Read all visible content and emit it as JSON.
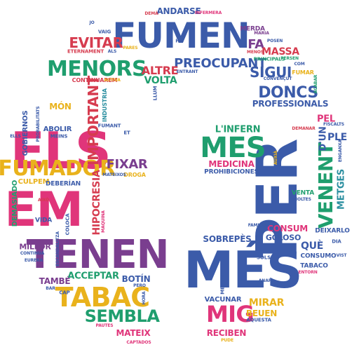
{
  "palette": {
    "pink": "#e0357a",
    "blue": "#3b5ba9",
    "green": "#1f9e6e",
    "yellow": "#e9b21c",
    "purple": "#7a3e8f",
    "red": "#d63c4f",
    "teal": "#2b8fa0",
    "orange": "#ef8a22"
  },
  "words": [
    {
      "text": "ELS",
      "color": "pink"
    },
    {
      "text": "PER",
      "color": "blue"
    },
    {
      "text": "EM",
      "color": "pink"
    },
    {
      "text": "TENEN",
      "color": "purple"
    },
    {
      "text": "MÉS",
      "color": "blue"
    },
    {
      "text": "FUMEN",
      "color": "blue"
    },
    {
      "text": "TABAC",
      "color": "yellow"
    },
    {
      "text": "FUMADOR",
      "color": "yellow"
    },
    {
      "text": "MENORS",
      "color": "green"
    },
    {
      "text": "MES",
      "color": "green"
    },
    {
      "text": "VENENT",
      "color": "green"
    },
    {
      "text": "DONCS",
      "color": "blue"
    },
    {
      "text": "SEMBLA",
      "color": "green"
    },
    {
      "text": "MIG",
      "color": "pink"
    },
    {
      "text": "IMPORTANT",
      "color": "red"
    },
    {
      "text": "EVITAR",
      "color": "red"
    },
    {
      "text": "FIXAR",
      "color": "purple"
    },
    {
      "text": "PREOCUPANT",
      "color": "blue"
    },
    {
      "text": "ALTRE",
      "color": "red"
    },
    {
      "text": "HIPOCRESIA",
      "color": "red"
    },
    {
      "text": "SIGUI",
      "color": "blue"
    },
    {
      "text": "FA",
      "color": "purple"
    },
    {
      "text": "MASSA",
      "color": "red"
    },
    {
      "text": "VOLTA",
      "color": "green"
    },
    {
      "text": "ANDARSE",
      "color": "blue"
    },
    {
      "text": "PROFESSIONALS",
      "color": "blue"
    },
    {
      "text": "L'INFERN",
      "color": "green"
    },
    {
      "text": "MEDICINA",
      "color": "pink"
    },
    {
      "text": "PROHIBICIONES",
      "color": "blue"
    },
    {
      "text": "PEL",
      "color": "pink"
    },
    {
      "text": "PLE",
      "color": "blue"
    },
    {
      "text": "D'UN",
      "color": "blue"
    },
    {
      "text": "METGES",
      "color": "teal"
    },
    {
      "text": "ACCEPTAR",
      "color": "green"
    },
    {
      "text": "BOTÍN",
      "color": "blue"
    },
    {
      "text": "MATEIX",
      "color": "pink"
    },
    {
      "text": "SOBREPÈS",
      "color": "blue"
    },
    {
      "text": "CONSUM",
      "color": "pink"
    },
    {
      "text": "GOLOSO",
      "color": "blue"
    },
    {
      "text": "QUÈ",
      "color": "blue"
    },
    {
      "text": "MIRAR",
      "color": "yellow"
    },
    {
      "text": "BEUEN",
      "color": "yellow"
    },
    {
      "text": "RECIBEN",
      "color": "pink"
    },
    {
      "text": "VACUNAR",
      "color": "blue"
    },
    {
      "text": "DEIXARLO",
      "color": "blue"
    },
    {
      "text": "TAMBÉ",
      "color": "purple"
    },
    {
      "text": "MILLOR",
      "color": "purple"
    },
    {
      "text": "CULPEM",
      "color": "yellow"
    },
    {
      "text": "DEBERÍAN",
      "color": "blue"
    },
    {
      "text": "VIDA",
      "color": "blue"
    },
    {
      "text": "DEMASIADO",
      "color": "green"
    },
    {
      "text": "MÓN",
      "color": "yellow"
    },
    {
      "text": "GOBIERNOS",
      "color": "blue"
    },
    {
      "text": "ABOLIR",
      "color": "blue"
    },
    {
      "text": "MEINS",
      "color": "blue"
    },
    {
      "text": "DROGA",
      "color": "yellow"
    },
    {
      "text": "MATEIXOS",
      "color": "blue"
    },
    {
      "text": "INDUSTRIA",
      "color": "teal"
    },
    {
      "text": "FUMANT",
      "color": "blue"
    },
    {
      "text": "CONTINUAREM",
      "color": "red"
    },
    {
      "text": "ETERNAMENT",
      "color": "red"
    },
    {
      "text": "ALS",
      "color": "blue"
    },
    {
      "text": "PARES",
      "color": "yellow"
    },
    {
      "text": "VAIG",
      "color": "blue"
    },
    {
      "text": "DEMÀ",
      "color": "red"
    },
    {
      "text": "INFERMERA",
      "color": "pink"
    },
    {
      "text": "MERDA",
      "color": "purple"
    },
    {
      "text": "MARIA",
      "color": "purple"
    },
    {
      "text": "POSEN",
      "color": "blue"
    },
    {
      "text": "MENOS",
      "color": "red"
    },
    {
      "text": "PRINCIPALS",
      "color": "green"
    },
    {
      "text": "FUMAR",
      "color": "yellow"
    },
    {
      "text": "CONVENÇUT",
      "color": "blue"
    },
    {
      "text": "PERSEN",
      "color": "green"
    },
    {
      "text": "ACABAR",
      "color": "green"
    },
    {
      "text": "HO",
      "color": "blue"
    },
    {
      "text": "ENTRANT",
      "color": "blue"
    },
    {
      "text": "ACTIVA",
      "color": "yellow"
    },
    {
      "text": "LLUM",
      "color": "blue"
    },
    {
      "text": "JO",
      "color": "blue"
    },
    {
      "text": "ET",
      "color": "blue"
    },
    {
      "text": "DEMANAR",
      "color": "red"
    },
    {
      "text": "FISCALTS",
      "color": "blue"
    },
    {
      "text": "ENGANXA",
      "color": "blue"
    },
    {
      "text": "AUXIÀ",
      "color": "yellow"
    },
    {
      "text": "VENTA",
      "color": "green"
    },
    {
      "text": "MOLTES",
      "color": "blue"
    },
    {
      "text": "FAMILIAR",
      "color": "blue"
    },
    {
      "text": "CONSUMO",
      "color": "blue"
    },
    {
      "text": "TABACO",
      "color": "blue"
    },
    {
      "text": "ENTORN",
      "color": "pink"
    },
    {
      "text": "DIA",
      "color": "blue"
    },
    {
      "text": "VIST",
      "color": "blue"
    },
    {
      "text": "SOLS",
      "color": "blue"
    },
    {
      "text": "ANAR",
      "color": "blue"
    },
    {
      "text": "AQUESTA",
      "color": "blue"
    },
    {
      "text": "PUDE",
      "color": "yellow"
    },
    {
      "text": "MENTRE",
      "color": "blue"
    },
    {
      "text": "PERO",
      "color": "blue"
    },
    {
      "text": "HORA",
      "color": "blue"
    },
    {
      "text": "CAPTADOS",
      "color": "pink"
    },
    {
      "text": "PAUTES",
      "color": "pink"
    },
    {
      "text": "CAP",
      "color": "blue"
    },
    {
      "text": "BAR",
      "color": "blue"
    },
    {
      "text": "EUREKA",
      "color": "blue"
    },
    {
      "text": "CONTINUA",
      "color": "blue"
    },
    {
      "text": "ESCANDALITZA",
      "color": "blue"
    },
    {
      "text": "COLOCA",
      "color": "blue"
    },
    {
      "text": "MAQUINA",
      "color": "pink"
    },
    {
      "text": "AIXÒ",
      "color": "red"
    },
    {
      "text": "ELLS",
      "color": "blue"
    },
    {
      "text": "PROBABILITATS",
      "color": "blue"
    },
    {
      "text": "COM",
      "color": "blue"
    }
  ]
}
